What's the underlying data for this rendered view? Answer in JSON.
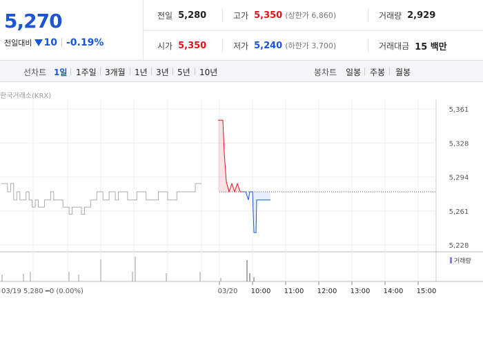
{
  "quote": {
    "price": "5,270",
    "change_label": "전일대비",
    "change_abs": "10",
    "change_pct": "-0.19%",
    "prev_close_label": "전일",
    "prev_close": "5,280",
    "open_label": "시가",
    "open": "5,350",
    "high_label": "고가",
    "high": "5,350",
    "upper_limit_note": "(상한가 6,860)",
    "low_label": "저가",
    "low": "5,240",
    "lower_limit_note": "(하한가 3,700)",
    "volume_label": "거래량",
    "volume": "2,929",
    "amount_label": "거래대금",
    "amount": "15 백만"
  },
  "toolbar": {
    "line_label": "선차트",
    "ranges": [
      "1일",
      "1주일",
      "3개월",
      "1년",
      "3년",
      "5년",
      "10년"
    ],
    "active_range": "1일",
    "candle_label": "봉차트",
    "candles": [
      "일봉",
      "주봉",
      "월봉"
    ]
  },
  "source": "한국거래소(KRX)",
  "colors": {
    "up": "#e0121b",
    "down": "#1a55d6",
    "grey_line": "#aaaaaa"
  },
  "chart_data": {
    "type": "line",
    "y_ticks": [
      "5,361",
      "5,328",
      "5,294",
      "5,261",
      "5,228"
    ],
    "ylim": [
      5228,
      5361
    ],
    "reference_price": 5280,
    "x_labels": [
      "03/20",
      "10:00",
      "11:00",
      "12:00",
      "13:00",
      "14:00",
      "15:00"
    ],
    "prev_day_label": "03/19",
    "prev_day_summary": "5,280 ━0 (0.00%)",
    "volume_legend": "거래량"
  }
}
